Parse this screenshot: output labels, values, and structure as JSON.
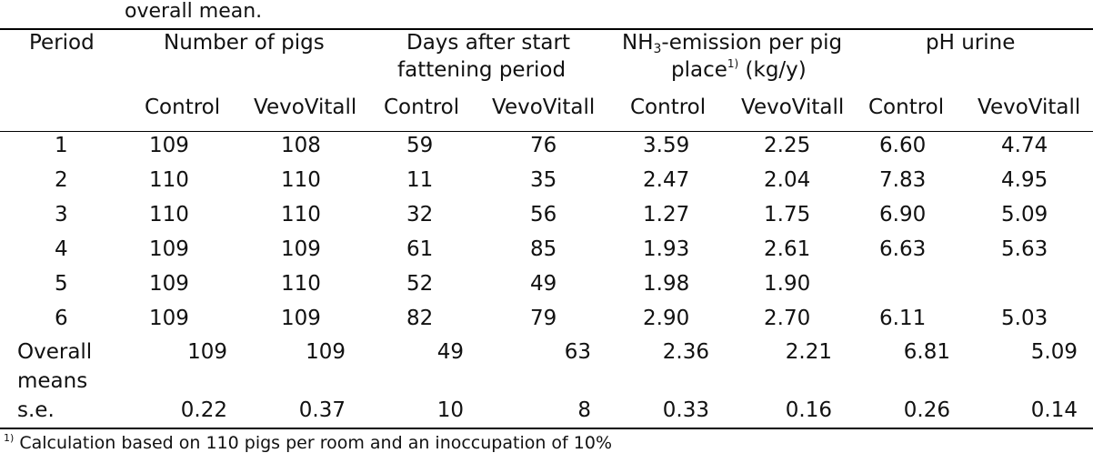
{
  "caption_tail": "overall mean.",
  "headers": {
    "period": "Period",
    "pigs": "Number of pigs",
    "days_line1": "Days after start",
    "days_line2": "fattening period",
    "nh3_prefix": "NH",
    "nh3_sub": "3",
    "nh3_suffix": "-emission per pig",
    "nh3_line2_prefix": "place",
    "nh3_sup": "1)",
    "nh3_line2_suffix": " (kg/y)",
    "ph": "pH urine"
  },
  "subheaders": [
    "Control",
    "VevoVitall",
    "Control",
    "VevoVitall",
    "Control",
    "VevoVitall",
    "Control",
    "VevoVitall"
  ],
  "rows": [
    {
      "period": "1",
      "c": [
        "109",
        "108",
        "59",
        "76",
        "3.59",
        "2.25",
        "6.60",
        "4.74"
      ]
    },
    {
      "period": "2",
      "c": [
        "110",
        "110",
        "11",
        "35",
        "2.47",
        "2.04",
        "7.83",
        "4.95"
      ]
    },
    {
      "period": "3",
      "c": [
        "110",
        "110",
        "32",
        "56",
        "1.27",
        "1.75",
        "6.90",
        "5.09"
      ]
    },
    {
      "period": "4",
      "c": [
        "109",
        "109",
        "61",
        "85",
        "1.93",
        "2.61",
        "6.63",
        "5.63"
      ]
    },
    {
      "period": "5",
      "c": [
        "109",
        "110",
        "52",
        "49",
        "1.98",
        "1.90",
        "",
        ""
      ]
    },
    {
      "period": "6",
      "c": [
        "109",
        "109",
        "82",
        "79",
        "2.90",
        "2.70",
        "6.11",
        "5.03"
      ]
    }
  ],
  "overall": {
    "label_line1": "Overall",
    "label_line2": "means",
    "c": [
      "109",
      "109",
      "49",
      "63",
      "2.36",
      "2.21",
      "6.81",
      "5.09"
    ]
  },
  "se": {
    "label": "s.e.",
    "c": [
      "0.22",
      "0.37",
      "10",
      "8",
      "0.33",
      "0.16",
      "0.26",
      "0.14"
    ]
  },
  "footnote": {
    "mark": "1)",
    "text": " Calculation based on 110 pigs per room and an inoccupation of 10%"
  }
}
